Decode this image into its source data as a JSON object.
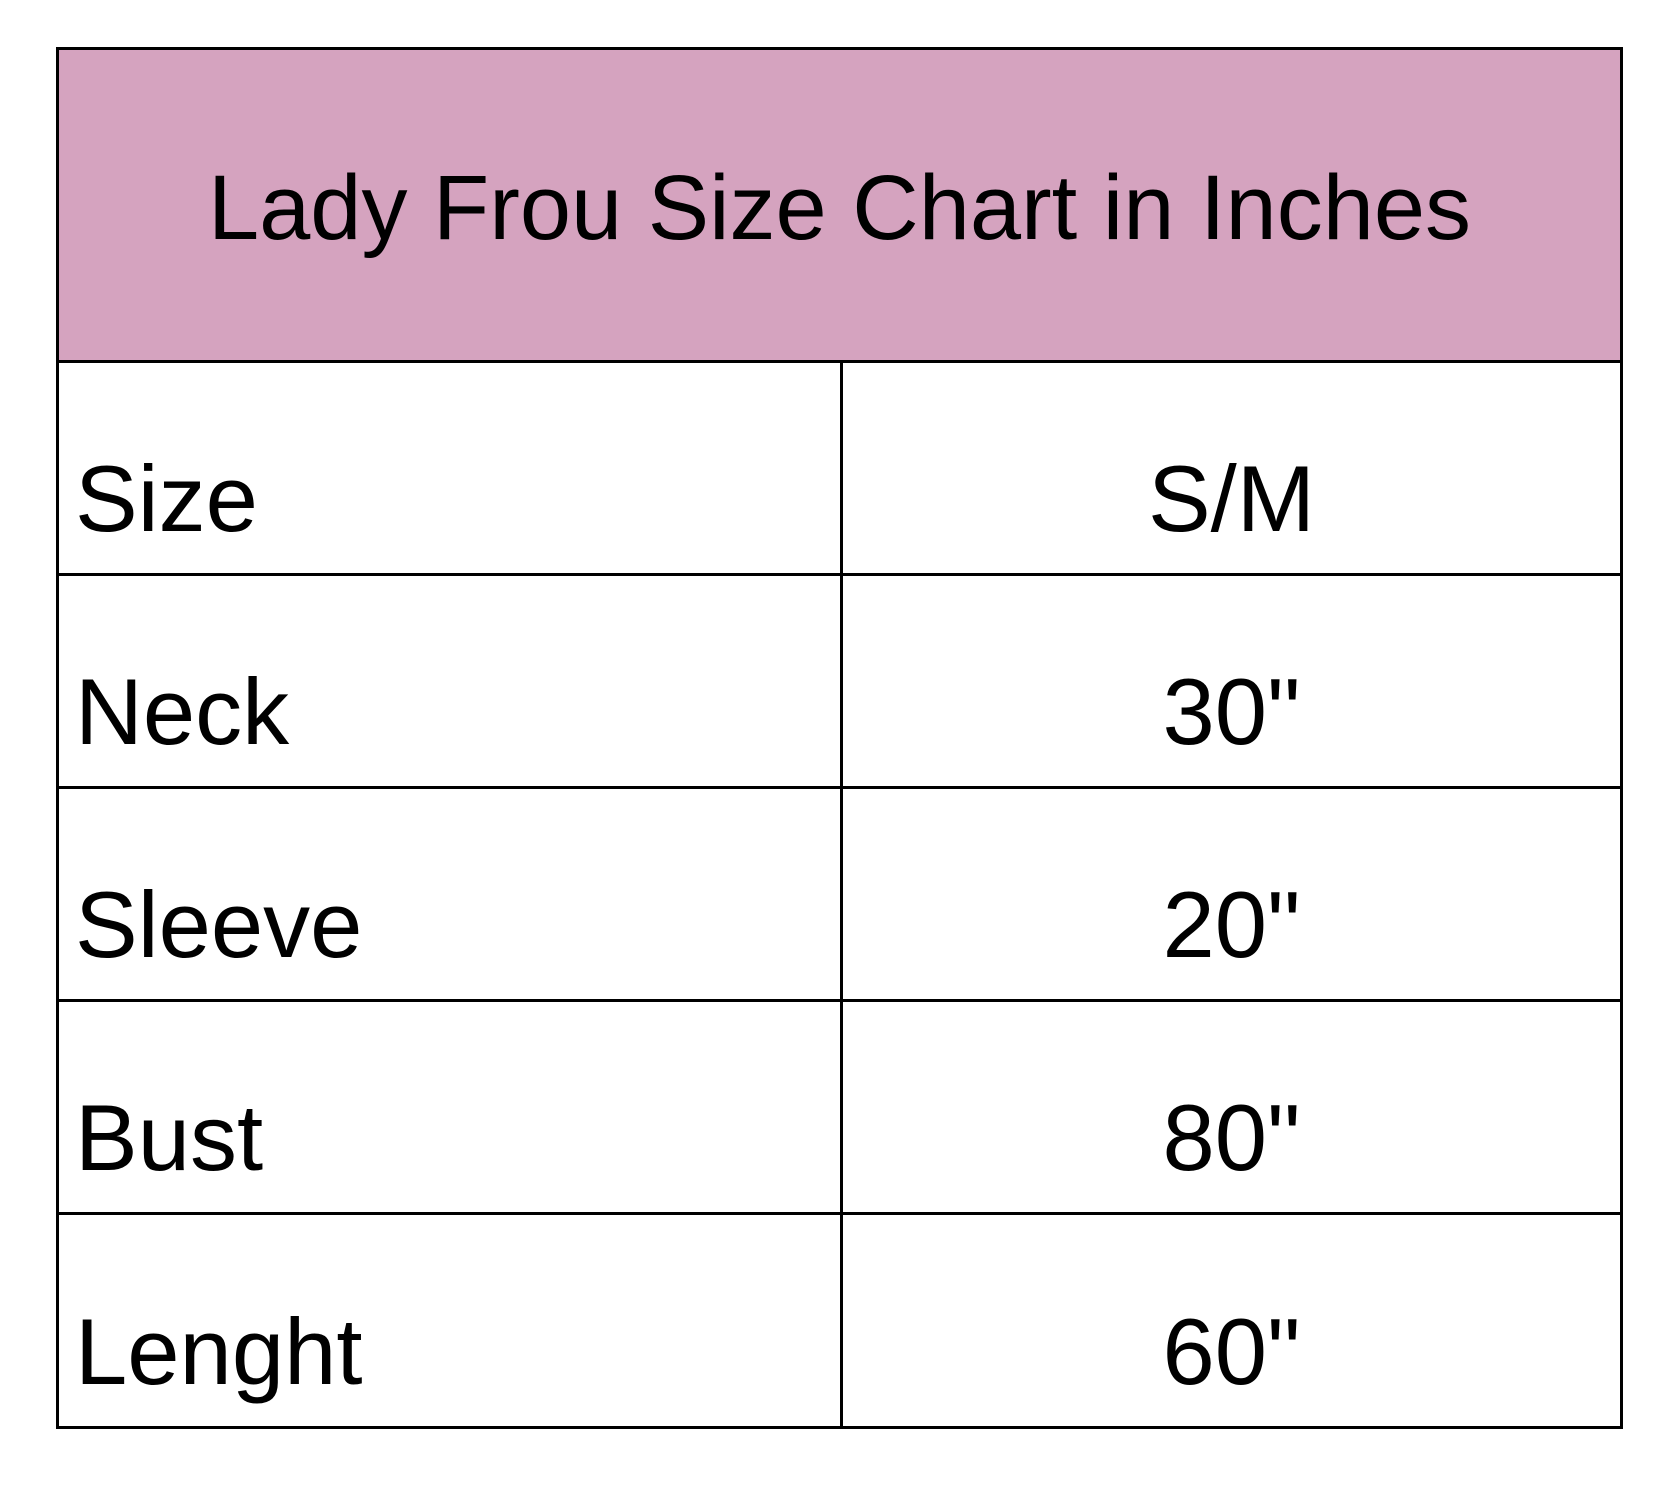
{
  "title": "Lady Frou Size Chart in Inches",
  "colors": {
    "header_bg": "#d5a3bf",
    "border": "#000000"
  },
  "rows": [
    {
      "label": "Size",
      "value": "S/M"
    },
    {
      "label": "Neck",
      "value": "30\""
    },
    {
      "label": "Sleeve",
      "value": "20\""
    },
    {
      "label": "Bust",
      "value": "80\""
    },
    {
      "label": "Lenght",
      "value": "60\""
    }
  ]
}
